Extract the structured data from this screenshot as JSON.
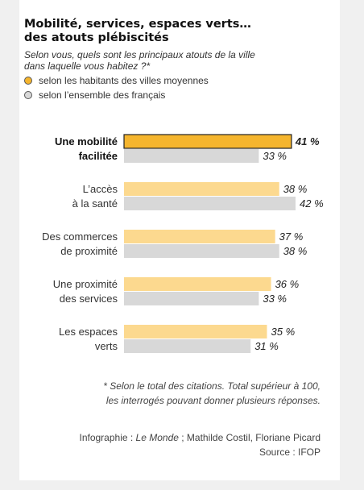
{
  "title_line1": "Mobilité, services, espaces verts…",
  "title_line2": "des atouts plébiscités",
  "question_line1": "Selon vous, quels sont les principaux atouts de la ville",
  "question_line2": "dans laquelle vous habitez ?*",
  "legend": [
    {
      "label": "selon les habitants des villes moyennes",
      "color": "#f5b52e"
    },
    {
      "label": "selon l’ensemble des français",
      "color": "#d8d8d8"
    }
  ],
  "footnote_line1": "* Selon le total des citations. Total supérieur à 100,",
  "footnote_line2": "les interrogés pouvant donner plusieurs réponses.",
  "credits": {
    "prefix": "Infographie : ",
    "source_name": "Le Monde",
    "authors": " ; Mathilde Costil, Floriane Picard",
    "source": "Source : IFOP"
  },
  "chart_data": {
    "type": "bar",
    "orientation": "horizontal",
    "categories": [
      [
        "Une mobilité",
        "facilitée"
      ],
      [
        "L’accès",
        "à la santé"
      ],
      [
        "Des commerces",
        "de proximité"
      ],
      [
        "Une proximité",
        "des services"
      ],
      [
        "Les espaces",
        "verts"
      ]
    ],
    "highlighted_category": 0,
    "series": [
      {
        "name": "selon les habitants des villes moyennes",
        "values": [
          41,
          38,
          37,
          36,
          35
        ],
        "value_labels": [
          "41 %",
          "38 %",
          "37 %",
          "36 %",
          "35 %"
        ],
        "color": "#f5b52e",
        "muted_color": "#fcd98f"
      },
      {
        "name": "selon l’ensemble des français",
        "values": [
          33,
          42,
          38,
          33,
          31
        ],
        "value_labels": [
          "33 %",
          "42 %",
          "38 %",
          "33 %",
          "31 %"
        ],
        "color": "#d8d8d8"
      }
    ],
    "xlim": [
      0,
      42
    ],
    "grid": false
  }
}
